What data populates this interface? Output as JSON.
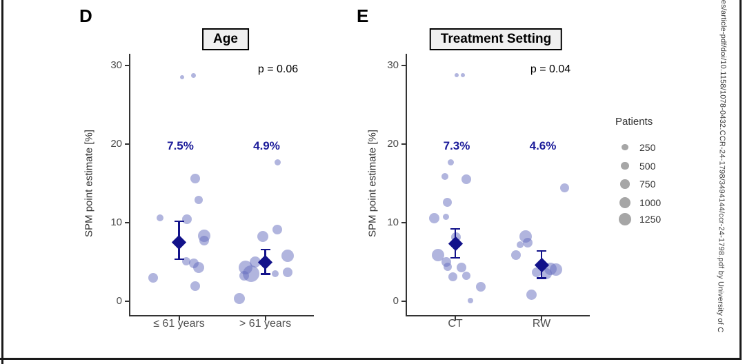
{
  "watermark": {
    "text": "res/article-pdf/doi/10.1158/1078-0432.CCR-24-1798/3494144/ccr-24-1798.pdf by University of C"
  },
  "legend": {
    "title": "Patients",
    "items": [
      {
        "label": "250",
        "r": 4.7
      },
      {
        "label": "500",
        "r": 5.7
      },
      {
        "label": "750",
        "r": 6.7
      },
      {
        "label": "1000",
        "r": 8.0
      },
      {
        "label": "1250",
        "r": 9.0
      }
    ]
  },
  "chart_data": [
    {
      "panel": "D",
      "type": "scatter",
      "title": "Age",
      "p_label": "p = 0.06",
      "ylabel": "SPM point estimate [%]",
      "yticks": [
        0,
        10,
        20,
        30
      ],
      "ylim": [
        -1.7,
        31.3
      ],
      "grid": false,
      "groups": [
        {
          "category": "≤ 61 years",
          "estimate_pct": 7.5,
          "estimate_label": "7.5%",
          "ci": [
            5.3,
            10.2
          ],
          "points": [
            [
              28.5,
              4,
              3
            ],
            [
              28.7,
              21,
              3.5
            ],
            [
              15.6,
              23,
              7
            ],
            [
              12.9,
              28,
              6
            ],
            [
              10.6,
              -28,
              5
            ],
            [
              10.4,
              11,
              7
            ],
            [
              8.3,
              36,
              9
            ],
            [
              7.7,
              36,
              7
            ],
            [
              5.1,
              10,
              6
            ],
            [
              4.8,
              21,
              7
            ],
            [
              4.3,
              28,
              8
            ],
            [
              3.0,
              -38,
              7
            ],
            [
              1.9,
              23,
              7
            ]
          ]
        },
        {
          "category": "> 61 years",
          "estimate_pct": 4.9,
          "estimate_label": "4.9%",
          "ci": [
            3.4,
            6.6
          ],
          "points": [
            [
              17.7,
              18,
              4.5
            ],
            [
              9.1,
              17,
              7
            ],
            [
              8.2,
              -4,
              8
            ],
            [
              5.8,
              32,
              9
            ],
            [
              5.0,
              -15,
              8
            ],
            [
              4.3,
              -29,
              10
            ],
            [
              3.5,
              -21,
              12
            ],
            [
              3.2,
              -31,
              7
            ],
            [
              3.5,
              14,
              5
            ],
            [
              3.7,
              32,
              7
            ],
            [
              0.3,
              -38,
              8
            ]
          ]
        }
      ]
    },
    {
      "panel": "E",
      "type": "scatter",
      "title": "Treatment Setting",
      "p_label": "p = 0.04",
      "ylabel": "SPM point estimate [%]",
      "yticks": [
        0,
        10,
        20,
        30
      ],
      "ylim": [
        -1.7,
        31.3
      ],
      "grid": false,
      "groups": [
        {
          "category": "CT",
          "estimate_pct": 7.3,
          "estimate_label": "7.3%",
          "ci": [
            5.5,
            9.2
          ],
          "points": [
            [
              28.8,
              2,
              3
            ],
            [
              28.8,
              11,
              3
            ],
            [
              17.7,
              -7,
              4.5
            ],
            [
              15.9,
              -15,
              5
            ],
            [
              15.5,
              16,
              7
            ],
            [
              12.6,
              -12,
              6.5
            ],
            [
              10.6,
              -31,
              7.5
            ],
            [
              10.7,
              -14,
              4.5
            ],
            [
              8.1,
              1,
              7
            ],
            [
              5.9,
              -25,
              9
            ],
            [
              5.0,
              -13,
              7
            ],
            [
              4.4,
              -11,
              6
            ],
            [
              4.3,
              9,
              7
            ],
            [
              3.1,
              -4,
              6.5
            ],
            [
              3.2,
              16,
              6
            ],
            [
              1.85,
              37,
              7
            ],
            [
              0.1,
              22,
              4
            ]
          ]
        },
        {
          "category": "RW",
          "estimate_pct": 4.6,
          "estimate_label": "4.6%",
          "ci": [
            2.9,
            6.4
          ],
          "points": [
            [
              14.4,
              33,
              6.5
            ],
            [
              8.2,
              -23,
              9
            ],
            [
              7.4,
              -20,
              7
            ],
            [
              7.2,
              -31,
              5
            ],
            [
              5.9,
              -37,
              7
            ],
            [
              4.1,
              13,
              9
            ],
            [
              4.0,
              21,
              9
            ],
            [
              3.5,
              7,
              8
            ],
            [
              3.7,
              -7,
              7
            ],
            [
              0.8,
              -15,
              7.5
            ]
          ]
        }
      ]
    }
  ]
}
